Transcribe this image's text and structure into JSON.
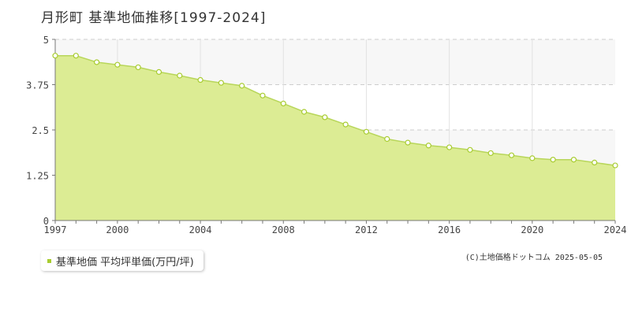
{
  "page": {
    "title": "月形町 基準地価推移[1997-2024]",
    "legend_label": "基準地価 平均坪単価(万円/坪)",
    "copyright": "(C)土地価格ドットコム 2025-05-05"
  },
  "chart_data": {
    "type": "area",
    "title": "月形町 基準地価推移[1997-2024]",
    "x": [
      1997,
      1998,
      1999,
      2000,
      2001,
      2002,
      2003,
      2004,
      2005,
      2006,
      2007,
      2008,
      2009,
      2010,
      2011,
      2012,
      2013,
      2014,
      2015,
      2016,
      2017,
      2018,
      2019,
      2020,
      2021,
      2022,
      2023,
      2024
    ],
    "series": [
      {
        "name": "基準地価 平均坪単価(万円/坪)",
        "values": [
          4.55,
          4.55,
          4.37,
          4.3,
          4.23,
          4.1,
          4.0,
          3.88,
          3.8,
          3.72,
          3.45,
          3.23,
          3.0,
          2.85,
          2.65,
          2.45,
          2.25,
          2.15,
          2.07,
          2.02,
          1.95,
          1.86,
          1.8,
          1.72,
          1.68,
          1.68,
          1.6,
          1.52
        ]
      }
    ],
    "xlabel": "",
    "ylabel": "",
    "xlim": [
      1997,
      2024
    ],
    "ylim": [
      0,
      5
    ],
    "x_ticks": [
      "1997",
      "2000",
      "2004",
      "2008",
      "2012",
      "2016",
      "2020",
      "2024"
    ],
    "y_ticks": [
      "0",
      "1.25",
      "2.5",
      "3.75",
      "5"
    ],
    "grid": true,
    "legend": "bottom-left",
    "colors": {
      "fill": "#dcec94",
      "line": "#b8d65a",
      "marker_fill": "#ffffff",
      "marker_stroke": "#a8cc30",
      "band": "#f7f7f7",
      "grid": "#cccccc",
      "axis": "#777777"
    }
  }
}
